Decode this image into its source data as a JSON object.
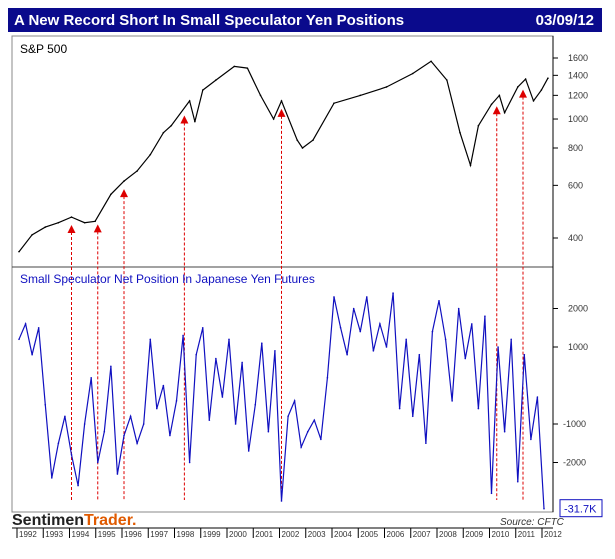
{
  "header": {
    "title": "A New Record Short In Small Speculator Yen Positions",
    "date": "03/09/12"
  },
  "footer": {
    "logo_a": "Sentimen",
    "logo_b": "Trader.",
    "source": "Source: CFTC"
  },
  "chart_data": [
    {
      "type": "line",
      "title": "S&P 500",
      "yscale": "log",
      "ylim": [
        350,
        1750
      ],
      "yticks": [
        400,
        600,
        800,
        1000,
        1200,
        1400,
        1600
      ],
      "x": [
        1992.0,
        1992.5,
        1993.0,
        1993.5,
        1994.0,
        1994.5,
        1994.9,
        1995.5,
        1996.0,
        1996.5,
        1997.0,
        1997.5,
        1997.8,
        1998.5,
        1998.7,
        1999.0,
        1999.5,
        2000.2,
        2000.7,
        2001.2,
        2001.7,
        2002.0,
        2002.6,
        2002.8,
        2003.2,
        2004.0,
        2005.0,
        2006.0,
        2007.0,
        2007.7,
        2008.3,
        2008.8,
        2009.2,
        2009.5,
        2010.0,
        2010.3,
        2010.5,
        2011.0,
        2011.3,
        2011.6,
        2011.9,
        2012.15
      ],
      "values": [
        360,
        410,
        435,
        450,
        470,
        450,
        455,
        560,
        620,
        670,
        760,
        900,
        950,
        1150,
        980,
        1250,
        1350,
        1500,
        1480,
        1200,
        1000,
        1150,
        850,
        800,
        850,
        1130,
        1200,
        1280,
        1420,
        1560,
        1350,
        900,
        700,
        950,
        1120,
        1200,
        1050,
        1280,
        1360,
        1150,
        1250,
        1370
      ],
      "color": "#000000"
    },
    {
      "type": "line",
      "title": "Small Speculator Net Position In Japanese Yen Futures",
      "ylim": [
        -3300,
        2600
      ],
      "yticks": [
        2000,
        1000,
        -1000,
        -2000
      ],
      "x_start": 1992.0,
      "x_step": 0.25,
      "values": [
        1200,
        1600,
        800,
        1500,
        -500,
        -2400,
        -1500,
        -800,
        -1800,
        -2600,
        -1000,
        200,
        -2000,
        -1200,
        500,
        -2300,
        -1300,
        -800,
        -1500,
        -1000,
        1200,
        -600,
        0,
        -1300,
        -400,
        1300,
        -2000,
        800,
        1500,
        -900,
        700,
        -300,
        1200,
        -1000,
        600,
        -1700,
        -500,
        1100,
        -1200,
        900,
        -3000,
        -800,
        -400,
        -1600,
        -1200,
        -900,
        -1400,
        200,
        2300,
        1500,
        800,
        2000,
        1400,
        2300,
        900,
        1600,
        1000,
        2400,
        -600,
        1200,
        -800,
        800,
        -1500,
        1400,
        2200,
        1200,
        -400,
        2000,
        700,
        1600,
        -600,
        1800,
        -2800,
        1000,
        -1200,
        1200,
        -2500,
        800,
        -1400,
        -300,
        -3200
      ],
      "last_label": "-31.7K",
      "color": "#1010c0"
    }
  ],
  "x_axis": {
    "ticks": [
      "1992",
      "1993",
      "1994",
      "1995",
      "1996",
      "1997",
      "1998",
      "1999",
      "2000",
      "2001",
      "2002",
      "2003",
      "2004",
      "2005",
      "2006",
      "2007",
      "2008",
      "2009",
      "2010",
      "2011",
      "2012"
    ]
  },
  "signals": [
    1994.0,
    1995.0,
    1996.0,
    1998.3,
    2002.0,
    2010.2,
    2011.2
  ]
}
